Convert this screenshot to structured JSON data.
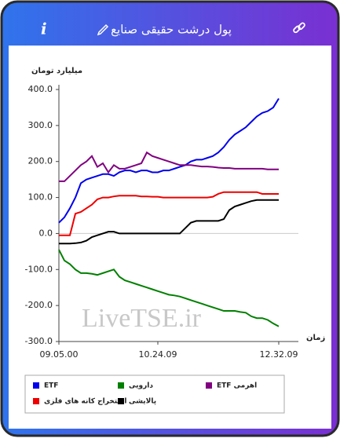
{
  "header": {
    "title": "پول درشت حقیقی صنایع",
    "info_label": "i"
  },
  "chart_data": {
    "type": "line",
    "y_label": "میلیارد تومان",
    "x_label": "زمان",
    "watermark": "LiveTSE.ir",
    "categories": [
      "09.05.00",
      null,
      null,
      null,
      null,
      null,
      null,
      null,
      null,
      null,
      null,
      null,
      null,
      null,
      null,
      null,
      null,
      null,
      "10.24.09",
      null,
      null,
      null,
      null,
      null,
      null,
      null,
      null,
      null,
      null,
      null,
      null,
      null,
      null,
      null,
      null,
      null,
      null,
      null,
      null,
      null,
      "12.32.09"
    ],
    "ylim": [
      -300,
      400
    ],
    "yticks": [
      {
        "value": 400,
        "label": "400.0"
      },
      {
        "value": 300,
        "label": "300.0"
      },
      {
        "value": 200,
        "label": "200.0"
      },
      {
        "value": 100,
        "label": "100.0"
      },
      {
        "value": 0,
        "label": "0.0"
      },
      {
        "value": -100,
        "label": "-100.0"
      },
      {
        "value": -200,
        "label": "-200.0"
      },
      {
        "value": -300,
        "label": "-300.0"
      }
    ],
    "series": [
      {
        "name": "ETF",
        "color": "#0000ee",
        "values": [
          30,
          45,
          70,
          100,
          140,
          150,
          155,
          160,
          165,
          165,
          160,
          170,
          175,
          175,
          170,
          175,
          175,
          170,
          170,
          175,
          175,
          180,
          185,
          190,
          200,
          205,
          205,
          210,
          215,
          225,
          240,
          260,
          275,
          285,
          295,
          310,
          325,
          335,
          340,
          350,
          375
        ]
      },
      {
        "name": "دارویی",
        "color": "#008000",
        "values": [
          -45,
          -75,
          -85,
          -100,
          -110,
          -110,
          -112,
          -115,
          -110,
          -105,
          -100,
          -120,
          -130,
          -135,
          -140,
          -145,
          -150,
          -155,
          -160,
          -165,
          -170,
          -172,
          -175,
          -180,
          -185,
          -190,
          -195,
          -200,
          -205,
          -210,
          -215,
          -215,
          -215,
          -218,
          -220,
          -230,
          -235,
          -235,
          -240,
          -250,
          -258
        ]
      },
      {
        "name": "ETF اهرمی",
        "color": "#800080",
        "values": [
          145,
          145,
          160,
          175,
          190,
          200,
          215,
          185,
          195,
          170,
          190,
          180,
          180,
          185,
          190,
          195,
          225,
          215,
          210,
          205,
          200,
          195,
          190,
          190,
          190,
          188,
          186,
          186,
          185,
          183,
          182,
          182,
          180,
          180,
          180,
          180,
          180,
          180,
          178,
          178,
          178
        ]
      },
      {
        "name": "استخراج کانه های فلزی",
        "color": "#ee0000",
        "values": [
          -5,
          -5,
          -5,
          55,
          60,
          70,
          80,
          95,
          100,
          100,
          103,
          105,
          105,
          105,
          105,
          103,
          103,
          102,
          102,
          100,
          100,
          100,
          100,
          100,
          100,
          100,
          100,
          100,
          102,
          110,
          115,
          115,
          115,
          115,
          115,
          115,
          115,
          110,
          110,
          110,
          110
        ]
      },
      {
        "name": "پالایشی",
        "color": "#000000",
        "values": [
          -28,
          -28,
          -28,
          -27,
          -25,
          -20,
          -10,
          -5,
          0,
          5,
          5,
          0,
          0,
          0,
          0,
          0,
          0,
          0,
          0,
          0,
          0,
          0,
          0,
          15,
          30,
          35,
          35,
          35,
          35,
          35,
          40,
          65,
          75,
          80,
          85,
          90,
          93,
          93,
          93,
          93,
          93
        ]
      }
    ]
  }
}
